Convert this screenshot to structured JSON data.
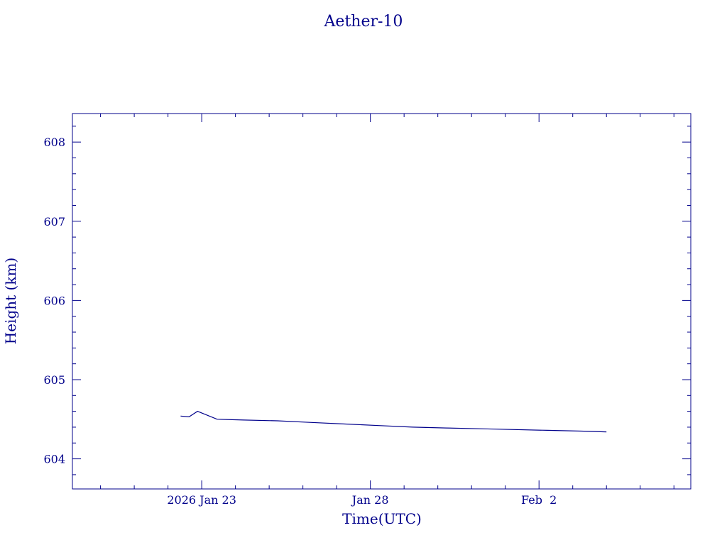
{
  "chart_data": {
    "type": "line",
    "title": "Aether-10",
    "xlabel": "Time(UTC)",
    "ylabel": "Height (km)",
    "x_ticks": [
      {
        "date": "2026-01-23",
        "label": "2026 Jan 23"
      },
      {
        "date": "2026-01-28",
        "label": "Jan 28"
      },
      {
        "date": "2026-02-02",
        "label": "Feb  2"
      }
    ],
    "y_ticks": [
      604,
      605,
      606,
      607,
      608
    ],
    "xlim": [
      "2026-01-19T04:00",
      "2026-02-06T12:00"
    ],
    "ylim": [
      603.62,
      608.36
    ],
    "grid": false,
    "color": "#00008b",
    "series": [
      {
        "x": [
          "2026-01-22T09:00",
          "2026-01-22T15:00",
          "2026-01-22T21:00",
          "2026-01-23T11:00",
          "2026-01-24T06:00",
          "2026-01-25T06:00",
          "2026-01-26T06:00",
          "2026-01-27T06:00",
          "2026-01-28T06:00",
          "2026-01-29T06:00",
          "2026-01-30T06:00",
          "2026-01-31T06:00",
          "2026-02-01T06:00",
          "2026-02-02T06:00",
          "2026-02-03T06:00",
          "2026-02-04T00:00"
        ],
        "y": [
          604.54,
          604.53,
          604.6,
          604.5,
          604.49,
          604.48,
          604.46,
          604.44,
          604.42,
          604.4,
          604.39,
          604.38,
          604.37,
          604.36,
          604.35,
          604.34
        ]
      }
    ]
  }
}
